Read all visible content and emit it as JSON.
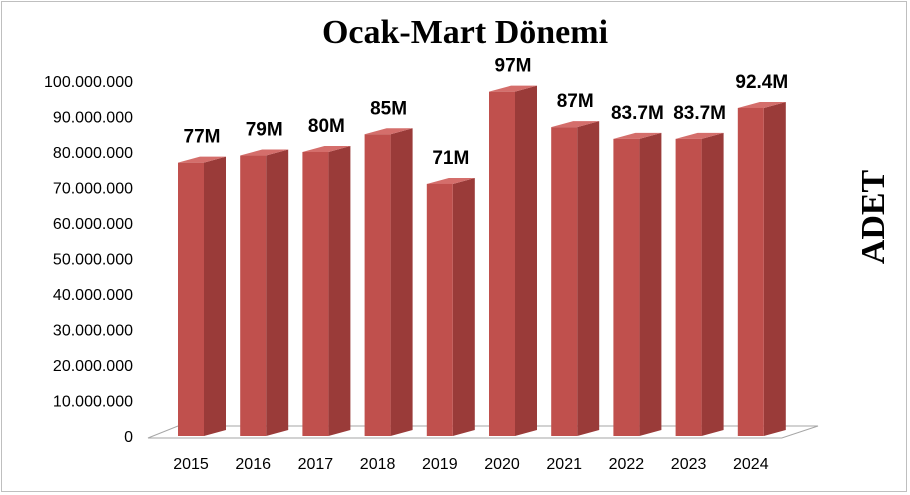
{
  "chart_data": {
    "type": "bar",
    "title": "Ocak-Mart Dönemi",
    "ylabel": "ADET",
    "xlabel": "",
    "categories": [
      "2015",
      "2016",
      "2017",
      "2018",
      "2019",
      "2020",
      "2021",
      "2022",
      "2023",
      "2024"
    ],
    "values": [
      77000000,
      79000000,
      80000000,
      85000000,
      71000000,
      97000000,
      87000000,
      83700000,
      83700000,
      92400000
    ],
    "data_labels": [
      "77M",
      "79M",
      "80M",
      "85M",
      "71M",
      "97M",
      "87M",
      "83.7M",
      "83.7M",
      "92.4M"
    ],
    "ylim": [
      0,
      100000000
    ],
    "yticks": [
      "0",
      "10.000.000",
      "20.000.000",
      "30.000.000",
      "40.000.000",
      "50.000.000",
      "60.000.000",
      "70.000.000",
      "80.000.000",
      "90.000.000",
      "100.000.000"
    ],
    "bar_color_front": "#c0504d",
    "bar_color_side": "#9a3b39",
    "bar_color_top": "#d46e6b",
    "grid": false,
    "legend": "none"
  }
}
